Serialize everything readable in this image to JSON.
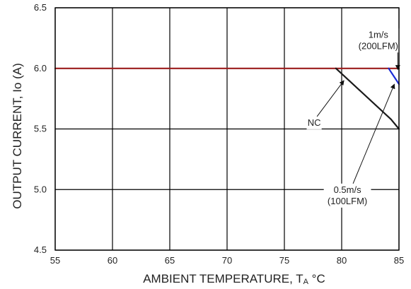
{
  "chart_data": {
    "type": "line",
    "xlabel": "AMBIENT TEMPERATURE, T",
    "xlabel_sub": "A",
    "xlabel_unit": " °C",
    "ylabel": "OUTPUT CURRENT, Io  (A)",
    "xlim": [
      55,
      85
    ],
    "ylim": [
      4.5,
      6.5
    ],
    "x_ticks": [
      "55",
      "60",
      "65",
      "70",
      "75",
      "80",
      "85"
    ],
    "y_ticks": [
      "4.5",
      "5.0",
      "5.5",
      "6.0",
      "6.5"
    ],
    "grid": true,
    "series": [
      {
        "color": "#9b1c1c",
        "x": [
          55,
          85
        ],
        "y": [
          6.0,
          6.0
        ]
      },
      {
        "color": "#1a1a1a",
        "x": [
          79.5,
          84.3,
          85
        ],
        "y": [
          6.0,
          5.58,
          5.5
        ]
      },
      {
        "color": "#1a2bd6",
        "x": [
          84.1,
          85
        ],
        "y": [
          6.0,
          5.87
        ]
      }
    ],
    "annotations": [
      {
        "label_lines": [
          "1m/s",
          "(200LFM)"
        ],
        "point": [
          84.9,
          5.99
        ],
        "text_at": [
          83.2,
          6.23
        ]
      },
      {
        "label_lines": [
          "NC"
        ],
        "point": [
          80.2,
          5.9
        ],
        "text_at": [
          77.6,
          5.55
        ]
      },
      {
        "label_lines": [
          "0.5m/s",
          "(100LFM)"
        ],
        "point": [
          84.6,
          5.87
        ],
        "text_at": [
          80.5,
          4.95
        ]
      }
    ]
  }
}
